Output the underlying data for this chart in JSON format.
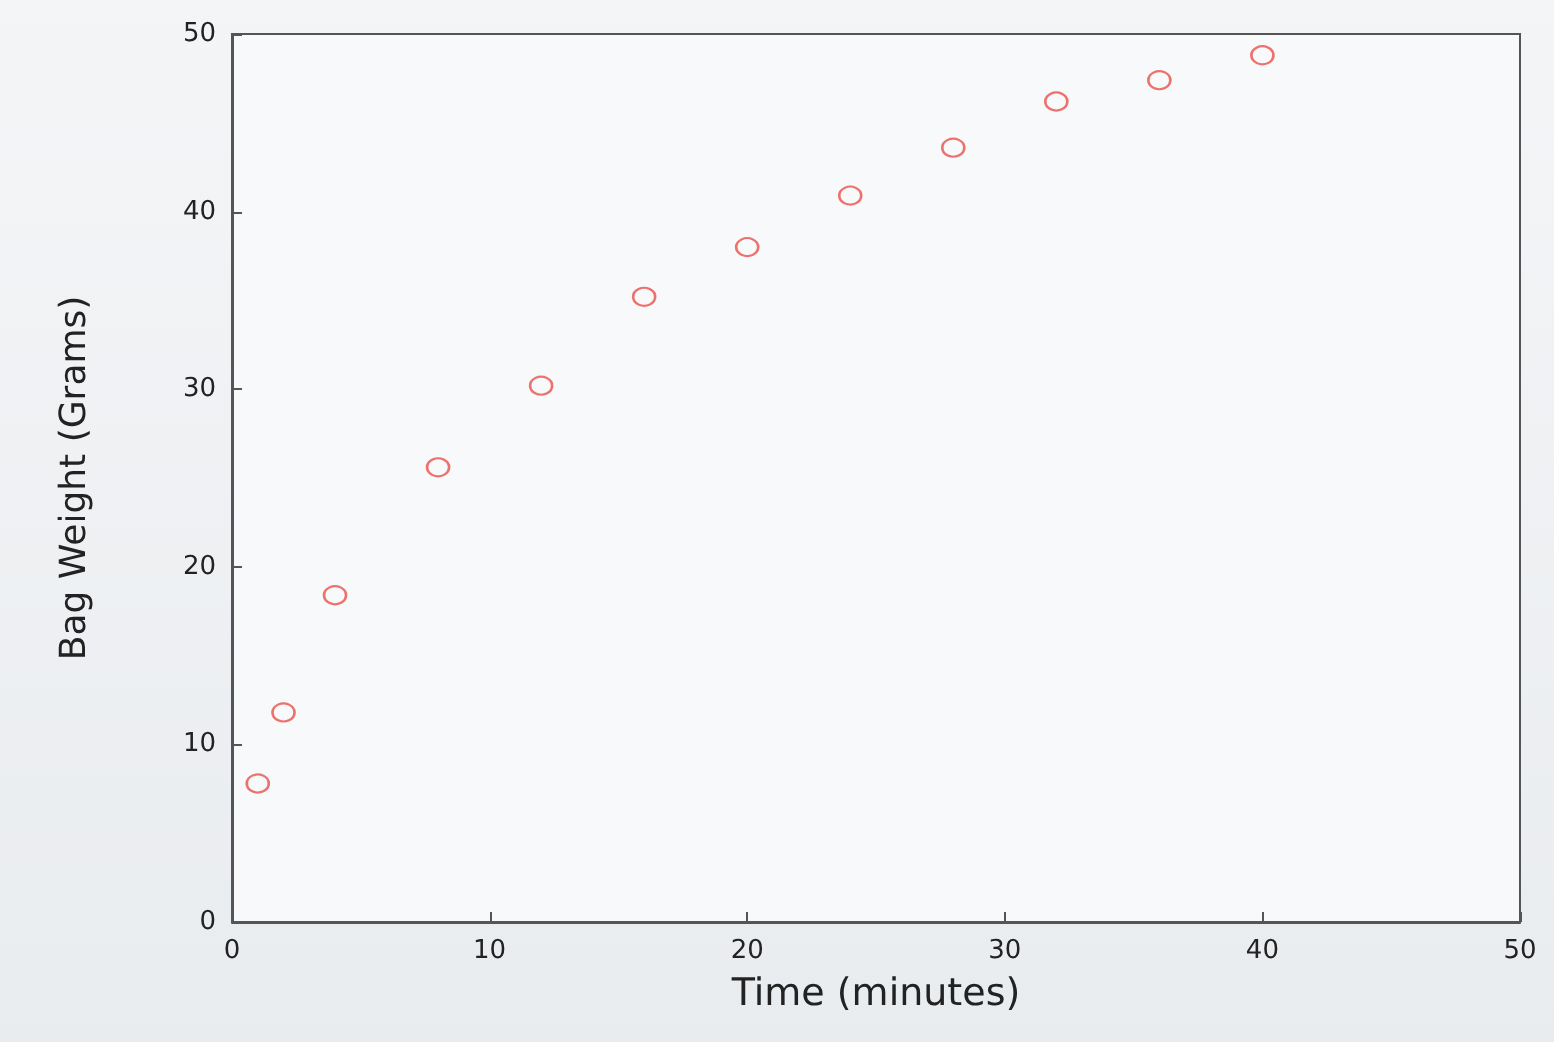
{
  "chart_data": {
    "type": "scatter",
    "xlabel": "Time (minutes)",
    "ylabel": "Bag Weight (Grams)",
    "x": [
      1,
      2,
      4,
      8,
      12,
      16,
      20,
      24,
      28,
      32,
      36,
      40
    ],
    "series": [
      {
        "color": "#e8504a",
        "values": [
          7.8,
          11.8,
          18.4,
          25.6,
          30.2,
          35.2,
          38.0,
          40.9,
          43.6,
          46.2,
          47.4,
          48.8
        ]
      }
    ],
    "xlim": [
      0,
      50
    ],
    "xticks": [
      0,
      10,
      20,
      30,
      40,
      50
    ],
    "ylim": [
      0,
      50
    ],
    "yticks": [
      0,
      10,
      20,
      30,
      40,
      50
    ],
    "marker": "circle",
    "grid": false
  }
}
